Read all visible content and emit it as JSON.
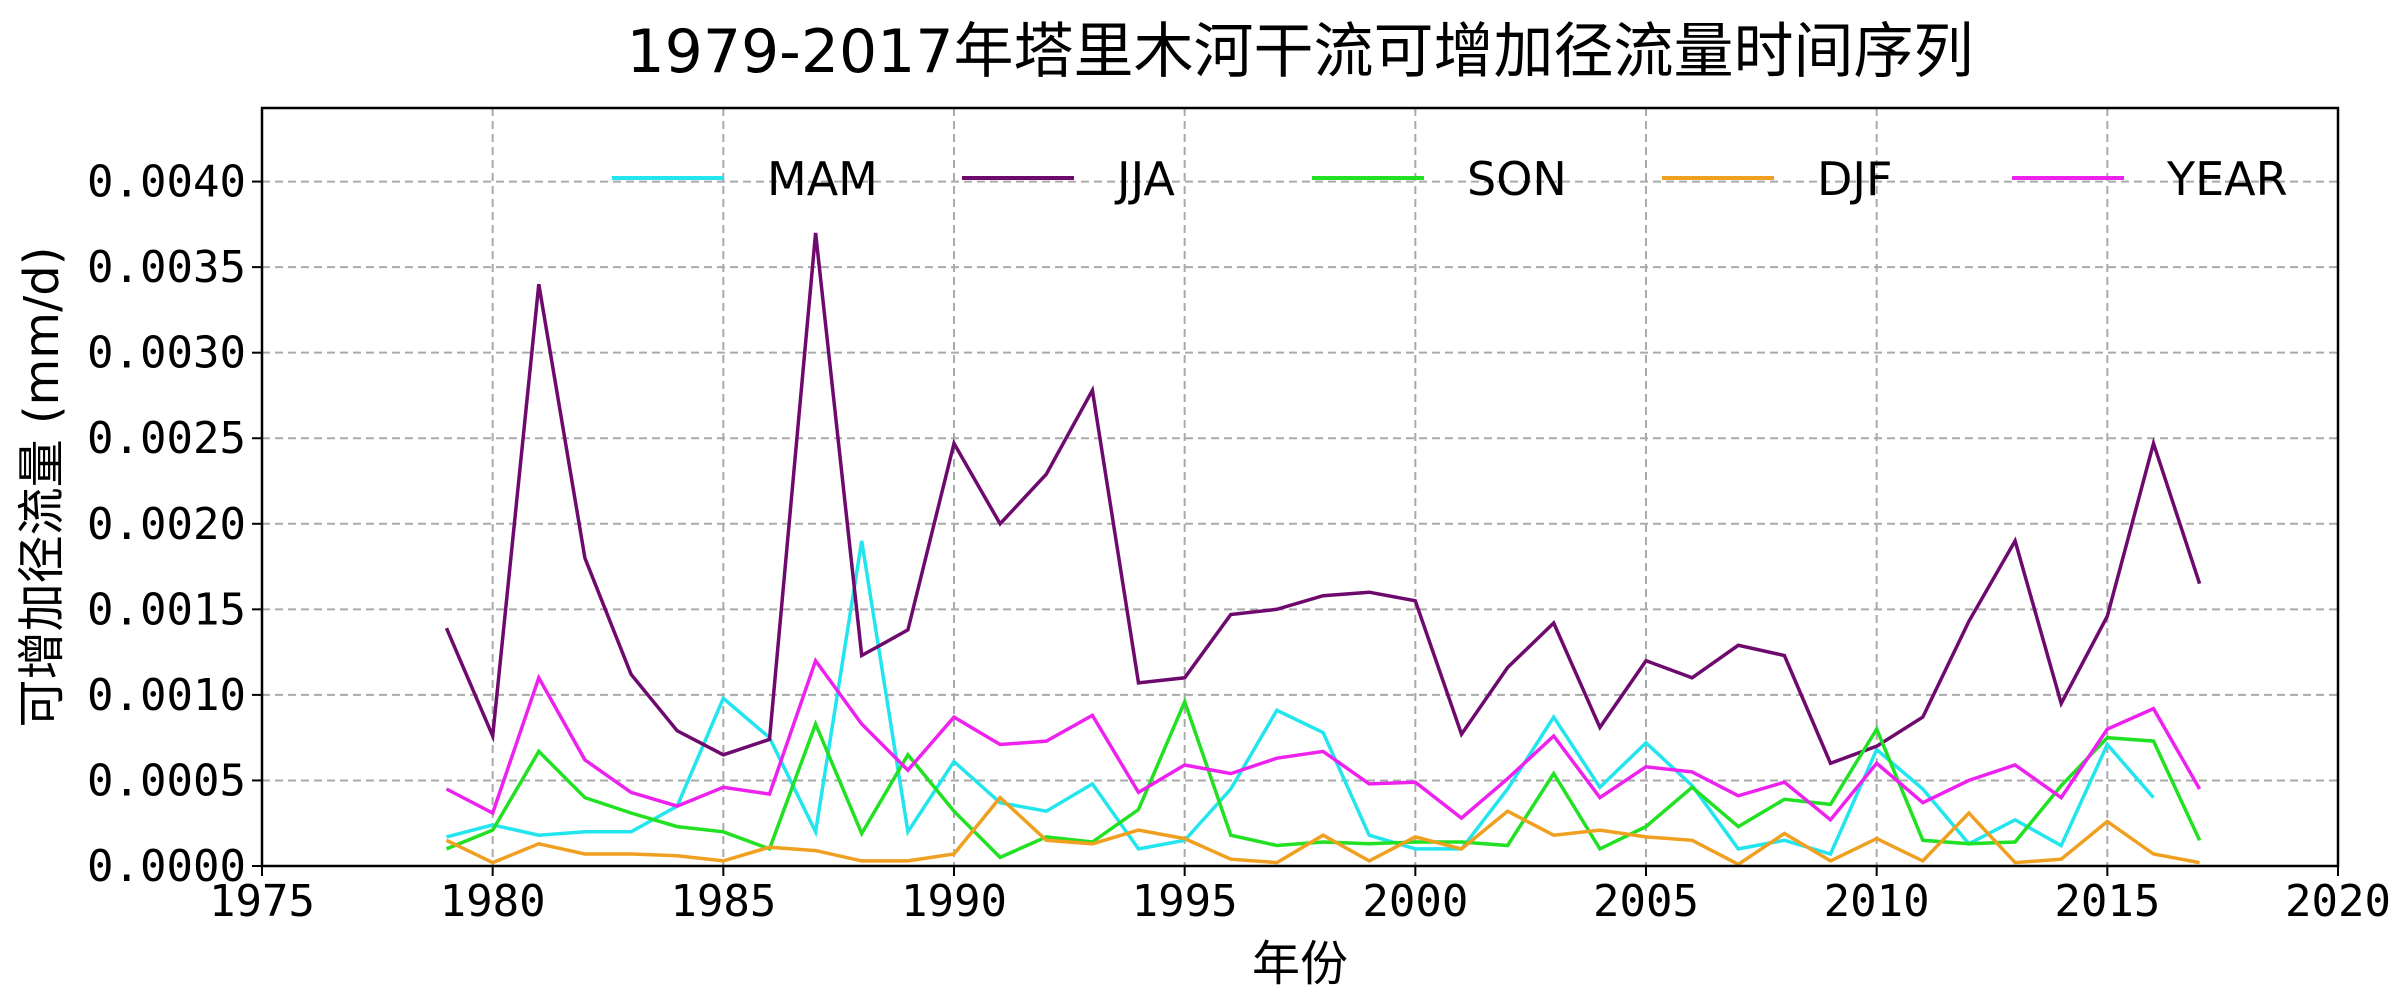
{
  "chart_data": {
    "type": "line",
    "title": "1979-2017年塔里木河干流可增加径流量时间序列",
    "xlabel": "年份",
    "ylabel": "可增加径流量 (mm/d)",
    "xlim": [
      1975,
      2020
    ],
    "ylim": [
      0,
      0.00443
    ],
    "xticks": [
      "1975",
      "1980",
      "1985",
      "1990",
      "1995",
      "2000",
      "2005",
      "2010",
      "2015",
      "2020"
    ],
    "yticks": [
      "0.0000",
      "0.0005",
      "0.0010",
      "0.0015",
      "0.0020",
      "0.0025",
      "0.0030",
      "0.0035",
      "0.0040"
    ],
    "grid": true,
    "legend_placement": "top",
    "x": [
      1979,
      1980,
      1981,
      1982,
      1983,
      1984,
      1985,
      1986,
      1987,
      1988,
      1989,
      1990,
      1991,
      1992,
      1993,
      1994,
      1995,
      1996,
      1997,
      1998,
      1999,
      2000,
      2001,
      2002,
      2003,
      2004,
      2005,
      2006,
      2007,
      2008,
      2009,
      2010,
      2011,
      2012,
      2013,
      2014,
      2015,
      2016,
      2017
    ],
    "series": [
      {
        "name": "MAM",
        "color": "#22e5ee",
        "values": [
          0.00017,
          0.00024,
          0.00018,
          0.0002,
          0.0002,
          0.00035,
          0.00098,
          0.00075,
          0.0002,
          0.0019,
          0.0002,
          0.00061,
          0.00037,
          0.00032,
          0.00048,
          0.0001,
          0.00015,
          0.00045,
          0.00091,
          0.00078,
          0.00018,
          0.0001,
          0.0001,
          0.00045,
          0.00087,
          0.00046,
          0.00072,
          0.00047,
          0.0001,
          0.00015,
          7e-05,
          0.00068,
          0.00045,
          0.00013,
          0.00027,
          0.00012,
          0.00071,
          0.0004,
          null
        ]
      },
      {
        "name": "JJA",
        "color": "#6e0a6e",
        "values": [
          0.00139,
          0.00076,
          0.0034,
          0.0018,
          0.00112,
          0.00079,
          0.00065,
          0.00074,
          0.0037,
          0.00123,
          0.00138,
          0.00247,
          0.002,
          0.00229,
          0.00278,
          0.00107,
          0.0011,
          0.00147,
          0.0015,
          0.00158,
          0.0016,
          0.00155,
          0.00077,
          0.00116,
          0.00142,
          0.00081,
          0.0012,
          0.0011,
          0.00129,
          0.00123,
          0.0006,
          0.0007,
          0.00087,
          0.00143,
          0.0019,
          0.00095,
          0.00146,
          0.00247,
          0.00165
        ]
      },
      {
        "name": "SON",
        "color": "#22e022",
        "values": [
          0.0001,
          0.00021,
          0.00067,
          0.0004,
          0.00031,
          0.00023,
          0.0002,
          0.0001,
          0.00083,
          0.00019,
          0.00065,
          0.00032,
          5e-05,
          0.00017,
          0.00014,
          0.00033,
          0.00096,
          0.00018,
          0.00012,
          0.00014,
          0.00013,
          0.00014,
          0.00014,
          0.00012,
          0.00054,
          0.0001,
          0.00023,
          0.00046,
          0.00023,
          0.00039,
          0.00036,
          0.0008,
          0.00015,
          0.00013,
          0.00014,
          0.00047,
          0.00075,
          0.00073,
          0.00015
        ]
      },
      {
        "name": "DJF",
        "color": "#f0a020",
        "values": [
          0.00015,
          2e-05,
          0.00013,
          7e-05,
          7e-05,
          6e-05,
          3e-05,
          0.00011,
          9e-05,
          3e-05,
          3e-05,
          7e-05,
          0.0004,
          0.00015,
          0.00013,
          0.00021,
          0.00016,
          4e-05,
          2e-05,
          0.00018,
          3e-05,
          0.00017,
          0.0001,
          0.00032,
          0.00018,
          0.00021,
          0.00017,
          0.00015,
          1e-05,
          0.00019,
          3e-05,
          0.00016,
          3e-05,
          0.00031,
          2e-05,
          4e-05,
          0.00026,
          7e-05,
          2e-05
        ]
      },
      {
        "name": "YEAR",
        "color": "#ee22ee",
        "values": [
          0.00045,
          0.00031,
          0.0011,
          0.00062,
          0.00043,
          0.00035,
          0.00046,
          0.00042,
          0.0012,
          0.00083,
          0.00056,
          0.00087,
          0.00071,
          0.00073,
          0.00088,
          0.00043,
          0.00059,
          0.00054,
          0.00063,
          0.00067,
          0.00048,
          0.00049,
          0.00028,
          0.00051,
          0.00076,
          0.0004,
          0.00058,
          0.00055,
          0.00041,
          0.00049,
          0.00027,
          0.0006,
          0.00037,
          0.0005,
          0.00059,
          0.0004,
          0.0008,
          0.00092,
          0.00045
        ]
      }
    ]
  }
}
